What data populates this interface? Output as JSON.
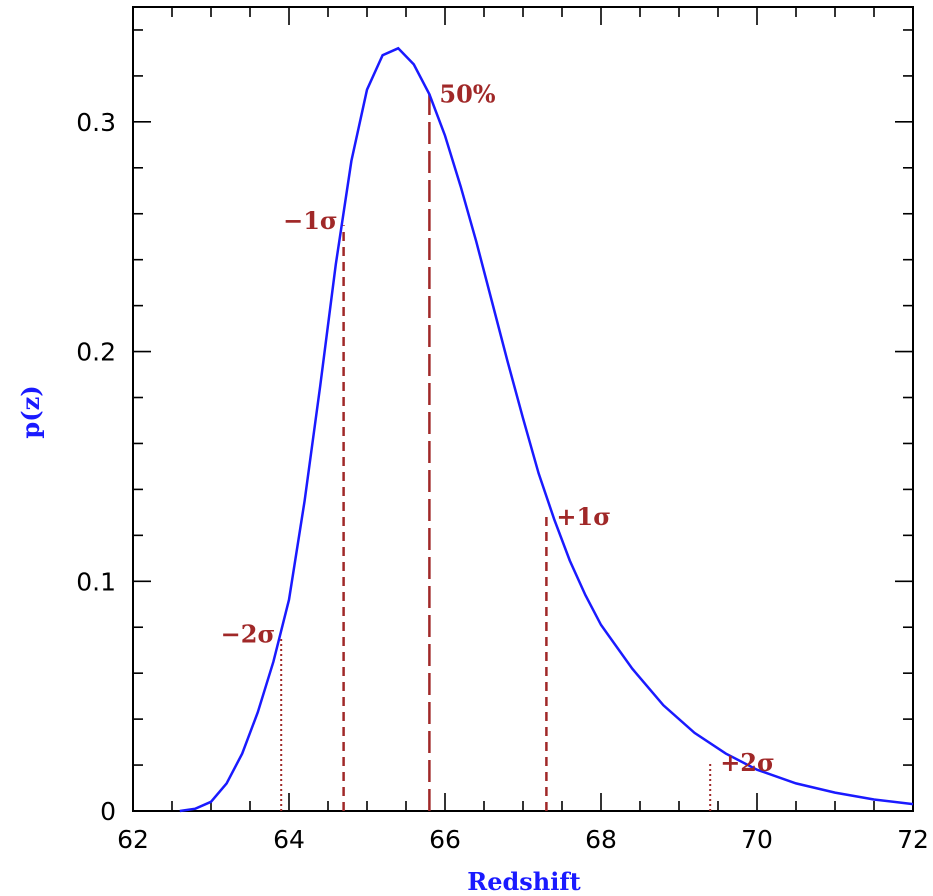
{
  "chart_data": {
    "type": "line",
    "title": "",
    "xlabel": "Redshift",
    "ylabel": "p(z)",
    "xlim": [
      62,
      72
    ],
    "ylim": [
      0,
      0.35
    ],
    "x_ticks": [
      "62",
      "64",
      "66",
      "68",
      "70",
      "72"
    ],
    "y_ticks": [
      "0",
      "0.1",
      "0.2",
      "0.3"
    ],
    "grid": false,
    "legend": "none",
    "colors": {
      "curve": "#1a1aff",
      "markers": "#a02828",
      "axis_title": "#1a1aff"
    },
    "series": [
      {
        "x": [
          62.6,
          62.8,
          63.0,
          63.2,
          63.4,
          63.6,
          63.8,
          64.0,
          64.2,
          64.4,
          64.6,
          64.8,
          65.0,
          65.2,
          65.4,
          65.6,
          65.8,
          66.0,
          66.2,
          66.4,
          66.6,
          66.8,
          67.0,
          67.2,
          67.4,
          67.6,
          67.8,
          68.0,
          68.4,
          68.8,
          69.2,
          69.6,
          70.0,
          70.5,
          71.0,
          71.5,
          72.0
        ],
        "y": [
          0.0,
          0.001,
          0.004,
          0.012,
          0.025,
          0.043,
          0.065,
          0.092,
          0.135,
          0.185,
          0.238,
          0.283,
          0.314,
          0.329,
          0.332,
          0.325,
          0.312,
          0.294,
          0.272,
          0.248,
          0.222,
          0.196,
          0.171,
          0.147,
          0.127,
          0.109,
          0.094,
          0.081,
          0.062,
          0.046,
          0.034,
          0.025,
          0.018,
          0.012,
          0.008,
          0.005,
          0.003
        ]
      }
    ],
    "annotations": [
      {
        "label": "−2σ",
        "x": 63.9,
        "y": 0.075,
        "style": "dotted"
      },
      {
        "label": "−1σ",
        "x": 64.7,
        "y": 0.255,
        "style": "dashed"
      },
      {
        "label": "50%",
        "x": 65.8,
        "y": 0.312,
        "style": "long-dashed"
      },
      {
        "label": "+1σ",
        "x": 67.3,
        "y": 0.128,
        "style": "dashed"
      },
      {
        "label": "+2σ",
        "x": 69.4,
        "y": 0.021,
        "style": "dotted"
      }
    ]
  }
}
